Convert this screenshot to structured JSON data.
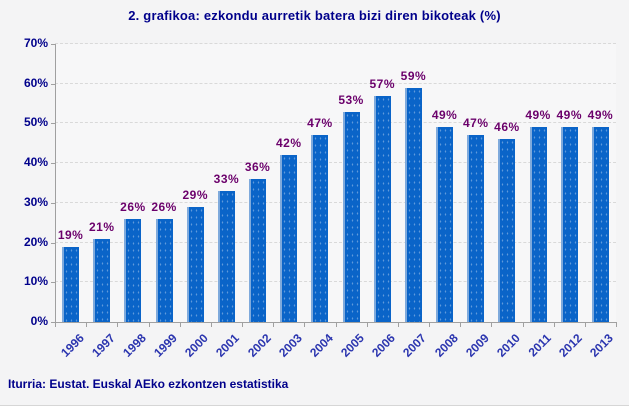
{
  "window": {
    "background": "#F4F4F5"
  },
  "header": {
    "title": "2. grafikoa: ezkondu aurretik batera bizi diren bikoteak (%)"
  },
  "footer": {
    "source": "Iturria: Eustat. Euskal AEko ezkontzen estatistika"
  },
  "chart_data": {
    "type": "bar",
    "title": "2. grafikoa: ezkondu aurretik batera bizi diren bikoteak (%)",
    "categories": [
      "1996",
      "1997",
      "1998",
      "1999",
      "2000",
      "2001",
      "2002",
      "2003",
      "2004",
      "2005",
      "2006",
      "2007",
      "2008",
      "2009",
      "2010",
      "2011",
      "2012",
      "2013"
    ],
    "values": [
      19,
      21,
      26,
      26,
      29,
      33,
      36,
      42,
      47,
      53,
      57,
      59,
      49,
      47,
      46,
      49,
      49,
      49
    ],
    "value_suffix": "%",
    "xlabel": "",
    "ylabel": "",
    "ylim": [
      0,
      70
    ],
    "ytick_step": 10,
    "ytick_suffix": "%",
    "grid": true,
    "legend": "none",
    "colors": {
      "bar": "#0A64C8",
      "bar_highlight": "#7FAADC",
      "value_label": "#6B006B",
      "title": "#00008B",
      "ytick_label": "#00008B",
      "xtick_label": "#2B35AF",
      "source": "#00008B",
      "axis": "#A0A0A0",
      "grid": "#D9D9D9"
    }
  }
}
